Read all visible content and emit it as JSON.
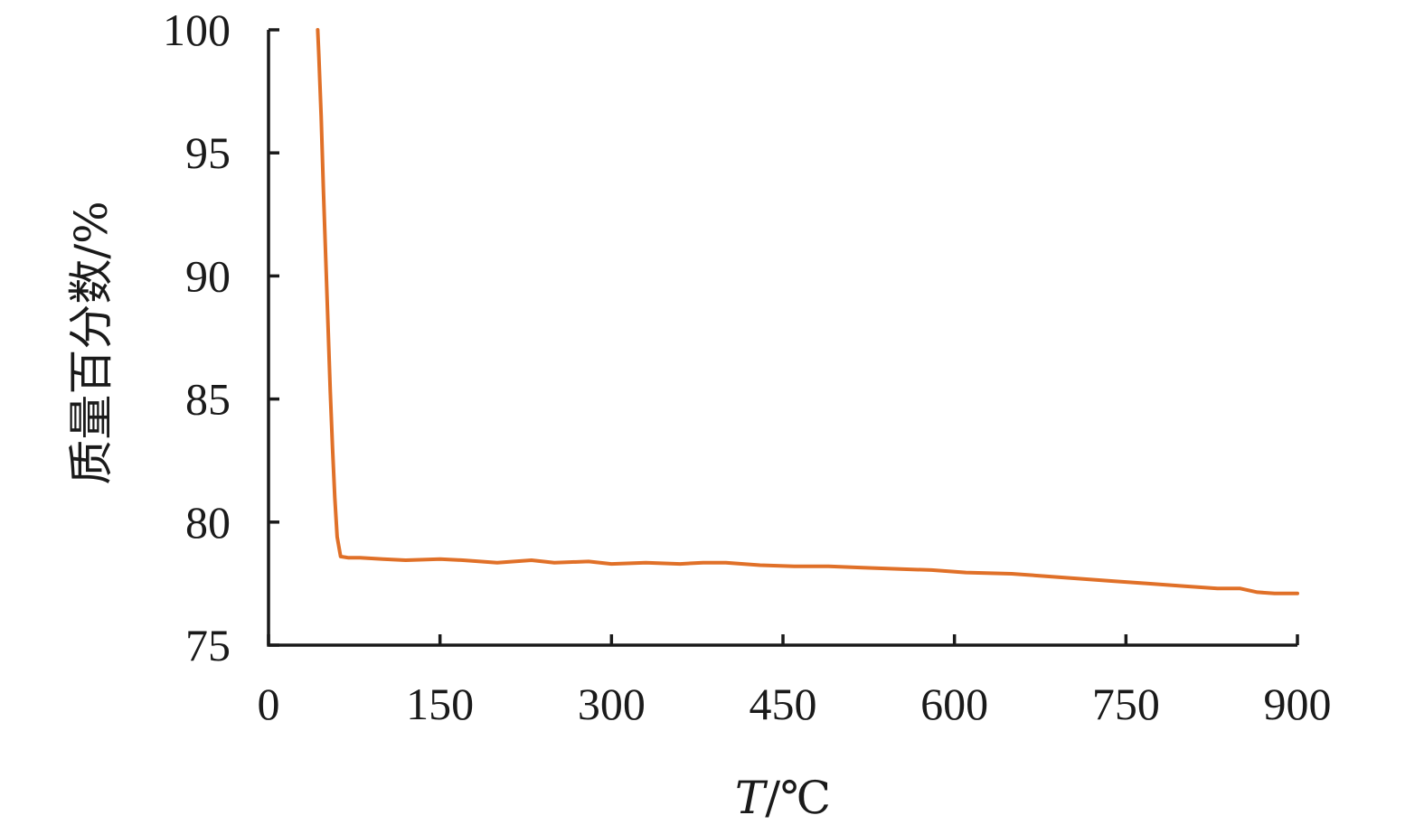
{
  "chart_data": {
    "type": "line",
    "title": "",
    "xlabel_italic": "T",
    "xlabel_rest": "/℃",
    "ylabel": "质量百分数/%",
    "xlim": [
      0,
      900
    ],
    "ylim": [
      75,
      100
    ],
    "x_ticks": [
      0,
      150,
      300,
      450,
      600,
      750,
      900
    ],
    "y_ticks": [
      75,
      80,
      85,
      90,
      95,
      100
    ],
    "grid": false,
    "legend": "none",
    "series": [
      {
        "color": "#e07028",
        "points": [
          [
            43,
            100.0
          ],
          [
            44,
            99.0
          ],
          [
            46,
            96.5
          ],
          [
            48,
            93.5
          ],
          [
            50,
            90.8
          ],
          [
            52,
            88.0
          ],
          [
            54,
            85.3
          ],
          [
            56,
            83.0
          ],
          [
            58,
            81.0
          ],
          [
            60,
            79.4
          ],
          [
            63,
            78.6
          ],
          [
            70,
            78.55
          ],
          [
            80,
            78.55
          ],
          [
            100,
            78.5
          ],
          [
            120,
            78.45
          ],
          [
            150,
            78.5
          ],
          [
            170,
            78.45
          ],
          [
            200,
            78.35
          ],
          [
            230,
            78.45
          ],
          [
            250,
            78.35
          ],
          [
            280,
            78.4
          ],
          [
            300,
            78.3
          ],
          [
            330,
            78.35
          ],
          [
            360,
            78.3
          ],
          [
            380,
            78.35
          ],
          [
            400,
            78.35
          ],
          [
            430,
            78.25
          ],
          [
            460,
            78.2
          ],
          [
            490,
            78.2
          ],
          [
            520,
            78.15
          ],
          [
            550,
            78.1
          ],
          [
            580,
            78.05
          ],
          [
            610,
            77.95
          ],
          [
            650,
            77.9
          ],
          [
            680,
            77.8
          ],
          [
            710,
            77.7
          ],
          [
            740,
            77.6
          ],
          [
            770,
            77.5
          ],
          [
            800,
            77.4
          ],
          [
            830,
            77.3
          ],
          [
            850,
            77.3
          ],
          [
            865,
            77.15
          ],
          [
            880,
            77.1
          ],
          [
            900,
            77.1
          ]
        ]
      }
    ]
  }
}
